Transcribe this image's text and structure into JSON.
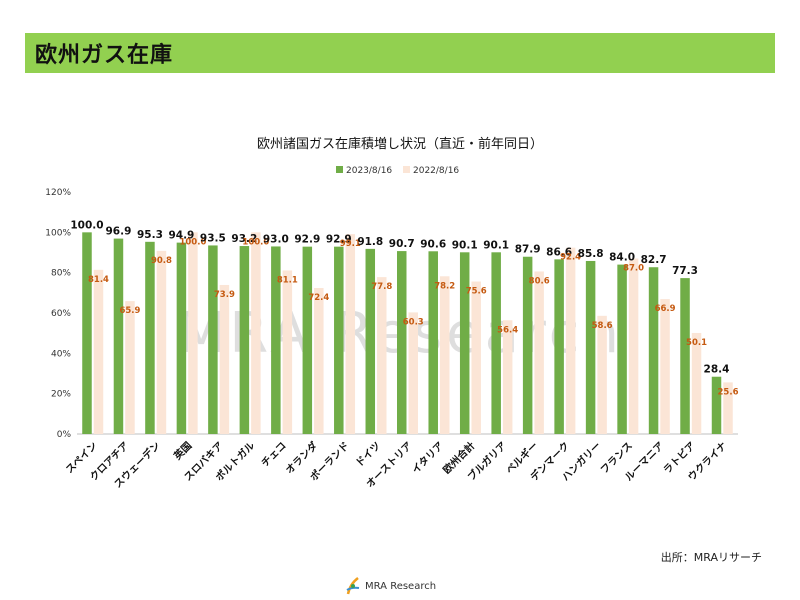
{
  "page": {
    "title": "欧州ガス在庫",
    "source": "出所：MRAリサーチ",
    "logo_text": "MRA Research",
    "watermark": "MRA Research"
  },
  "colors": {
    "header": "#92d050",
    "series_2023": "#70ad47",
    "series_2022": "#fbe5d6",
    "label_2022": "#c55a11"
  },
  "chart_data": {
    "type": "bar",
    "title": "欧州諸国ガス在庫積増し状況（直近・前年同日）",
    "xlabel": "",
    "ylabel": "",
    "ylim": [
      0,
      120
    ],
    "ytick_labels": [
      "0%",
      "20%",
      "40%",
      "60%",
      "80%",
      "100%",
      "120%"
    ],
    "grid": false,
    "legend_position": "top-center",
    "categories": [
      "スペイン",
      "クロアチア",
      "スウェーデン",
      "英国",
      "スロバキア",
      "ポルトガル",
      "チェコ",
      "オランダ",
      "ポーランド",
      "ドイツ",
      "オーストリア",
      "イタリア",
      "欧州合計",
      "ブルガリア",
      "ベルギー",
      "デンマーク",
      "ハンガリー",
      "フランス",
      "ルーマニア",
      "ラトビア",
      "ウクライナ"
    ],
    "series": [
      {
        "name": "2023/8/16",
        "values": [
          100.0,
          96.9,
          95.3,
          94.9,
          93.5,
          93.2,
          93.0,
          92.9,
          92.9,
          91.8,
          90.7,
          90.6,
          90.1,
          90.1,
          87.9,
          86.6,
          85.8,
          84.0,
          82.7,
          77.3,
          28.4
        ]
      },
      {
        "name": "2022/8/16",
        "values": [
          81.4,
          65.9,
          90.8,
          100.0,
          73.9,
          100.0,
          81.1,
          72.4,
          99.1,
          77.8,
          60.3,
          78.2,
          75.6,
          56.4,
          80.6,
          92.4,
          58.6,
          87.0,
          66.9,
          50.1,
          25.6
        ]
      }
    ]
  }
}
